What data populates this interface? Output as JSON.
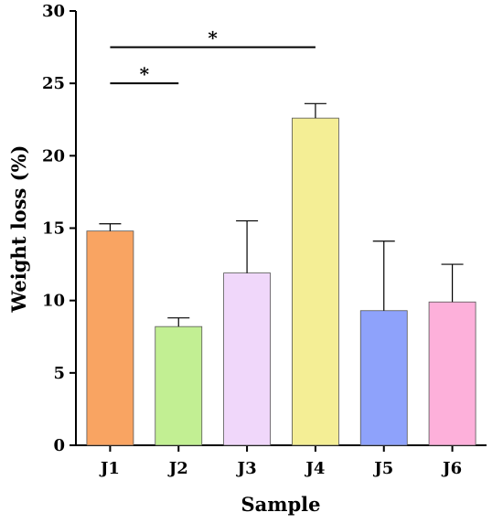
{
  "chart_data": {
    "type": "bar",
    "title": "",
    "xlabel": "Sample",
    "ylabel": "Weight loss (%)",
    "ylim": [
      0,
      30
    ],
    "yticks": [
      0,
      5,
      10,
      15,
      20,
      25,
      30
    ],
    "categories": [
      "J1",
      "J2",
      "J3",
      "J4",
      "J5",
      "J6"
    ],
    "values": [
      14.8,
      8.2,
      11.9,
      22.6,
      9.3,
      9.9
    ],
    "error_upper": [
      0.5,
      0.6,
      3.6,
      1.0,
      4.8,
      2.6
    ],
    "colors": [
      "#f9a462",
      "#c2ef93",
      "#f0d7fa",
      "#f4ee95",
      "#8ea2fb",
      "#fdb0da"
    ],
    "significance": [
      {
        "from": "J1",
        "to": "J2",
        "y": 25,
        "label": "*"
      },
      {
        "from": "J1",
        "to": "J4",
        "y": 27.5,
        "label": "*"
      }
    ],
    "grid": false,
    "legend": "none"
  }
}
